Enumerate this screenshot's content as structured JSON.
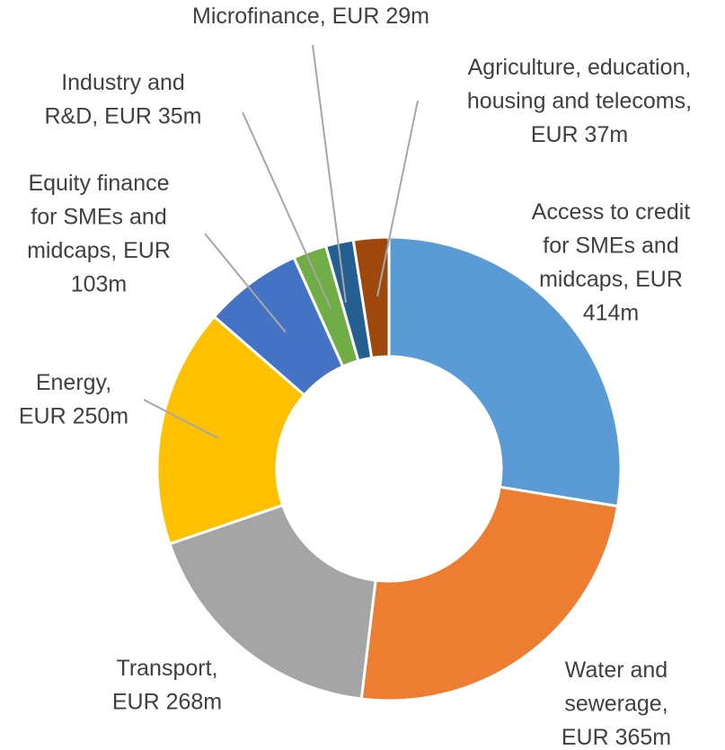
{
  "chart_data": {
    "type": "pie",
    "donut": true,
    "categories": [
      "Access to credit for SMEs and midcaps",
      "Water and sewerage",
      "Transport",
      "Energy",
      "Equity finance for SMEs and midcaps",
      "Industry and R&D",
      "Microfinance",
      "Agriculture, education, housing and telecoms"
    ],
    "values": [
      414,
      365,
      268,
      250,
      103,
      35,
      29,
      37
    ],
    "value_labels": [
      "Access to credit\nfor SMEs and\nmidcaps, EUR\n414m",
      "Water and\nsewerage,\nEUR 365m",
      "Transport,\nEUR 268m",
      "Energy,\nEUR 250m",
      "Equity finance\nfor SMEs and\nmidcaps, EUR\n103m",
      "Industry and\nR&D, EUR 35m",
      "Microfinance, EUR 29m",
      "Agriculture, education,\nhousing and telecoms,\nEUR 37m"
    ],
    "colors": [
      "#5b9bd5",
      "#ed7d31",
      "#a5a5a5",
      "#ffc000",
      "#4472c4",
      "#70ad47",
      "#255e91",
      "#9e480e"
    ]
  }
}
